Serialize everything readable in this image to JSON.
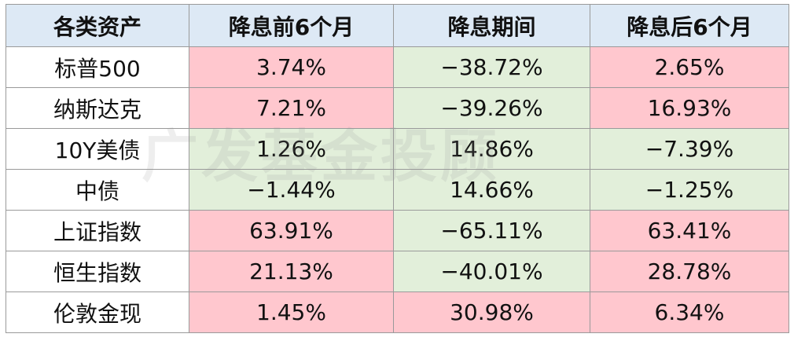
{
  "header": [
    "各类资产",
    "降息前6个月",
    "降息期间",
    "降息后6个月"
  ],
  "table": {
    "rows": [
      [
        "标普500",
        "3.74%",
        "−38.72%",
        "2.65%"
      ],
      [
        "纳斯达克",
        "7.21%",
        "−39.26%",
        "16.93%"
      ],
      [
        "10Y美债",
        "1.26%",
        "14.86%",
        "−7.39%"
      ],
      [
        "中债",
        "−1.44%",
        "14.66%",
        "−1.25%"
      ],
      [
        "上证指数",
        "63.91%",
        "−65.11%",
        "63.41%"
      ],
      [
        "恒生指数",
        "21.13%",
        "−40.01%",
        "28.78%"
      ],
      [
        "伦敦金现",
        "1.45%",
        "30.98%",
        "6.34%"
      ]
    ],
    "fills": [
      [
        "#ffffff",
        "#ffc7ce",
        "#e2efda",
        "#ffc7ce"
      ],
      [
        "#ffffff",
        "#ffc7ce",
        "#e2efda",
        "#ffc7ce"
      ],
      [
        "#ffffff",
        "#e2efda",
        "#e2efda",
        "#e2efda"
      ],
      [
        "#ffffff",
        "#e2efda",
        "#e2efda",
        "#e2efda"
      ],
      [
        "#ffffff",
        "#ffc7ce",
        "#e2efda",
        "#ffc7ce"
      ],
      [
        "#ffffff",
        "#ffc7ce",
        "#e2efda",
        "#ffc7ce"
      ],
      [
        "#ffffff",
        "#ffc7ce",
        "#ffc7ce",
        "#ffc7ce"
      ]
    ],
    "header_fill": "#dde9f5"
  },
  "watermark": "广发基金投顾"
}
